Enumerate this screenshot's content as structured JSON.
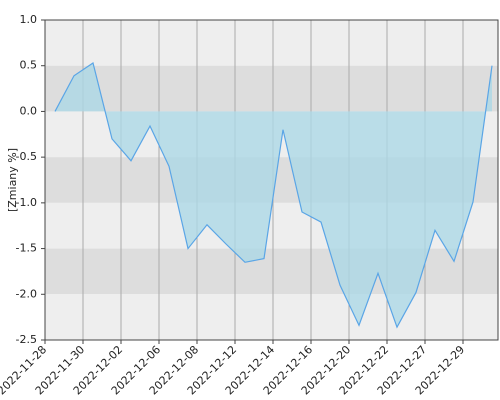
{
  "chart_data": {
    "type": "area",
    "y_label": "[Zmiany %]",
    "x_tick_labels": [
      "2022-11-28",
      "2022-11-30",
      "2022-12-02",
      "2022-12-06",
      "2022-12-08",
      "2022-12-12",
      "2022-12-14",
      "2022-12-16",
      "2022-12-20",
      "2022-12-22",
      "2022-12-27",
      "2022-12-29"
    ],
    "values": [
      0,
      0.39,
      0.53,
      -0.3,
      -0.54,
      -0.16,
      -0.6,
      -1.5,
      -1.24,
      -1.45,
      -1.65,
      -1.61,
      -0.2,
      -1.1,
      -1.21,
      -1.9,
      -2.34,
      -1.77,
      -2.36,
      -1.98,
      -1.3,
      -1.64,
      -0.99,
      0.5
    ],
    "ylim": [
      -2.5,
      1
    ],
    "yticks": [
      {
        "value": 1,
        "label": "1.0"
      },
      0.5,
      {
        "value": 0,
        "label": "0.0"
      },
      -0.5,
      {
        "value": -1,
        "label": "-1.0"
      },
      -1.5,
      {
        "value": -2,
        "label": "-2.0"
      },
      -2.5
    ],
    "line_color": "#5aa5e6",
    "fill_color": "#add8e6",
    "band_colors": [
      "#eeeeee",
      "#dddddd"
    ],
    "grid": true
  }
}
